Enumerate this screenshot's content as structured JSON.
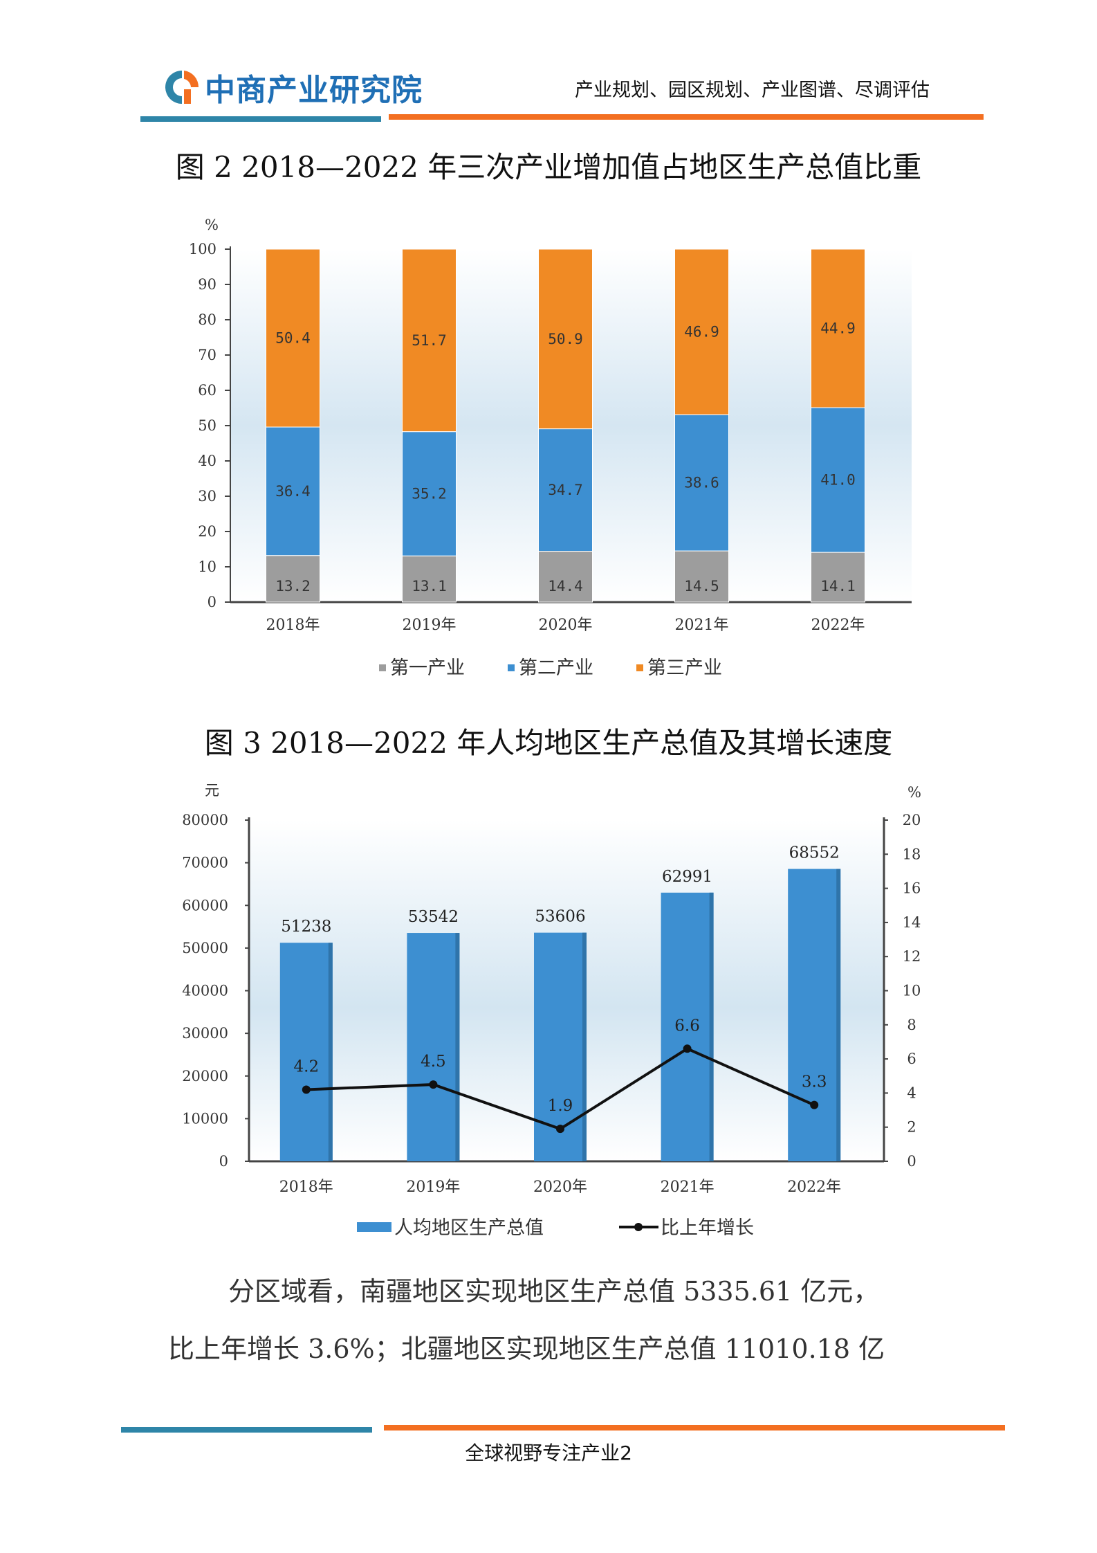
{
  "header": {
    "brand": "中商产业研究院",
    "tagline": "产业规划、园区规划、产业图谱、尽调评估",
    "colors": {
      "blue": "#2e85a8",
      "orange": "#f36f21",
      "brand": "#1f6fb5"
    },
    "logo_icon": "brand-logo-icon"
  },
  "figure2": {
    "title": "图 2 2018—2022 年三次产业增加值占地区生产总值比重",
    "chart_data": {
      "type": "bar",
      "stacked": true,
      "categories": [
        "2018年",
        "2019年",
        "2020年",
        "2021年",
        "2022年"
      ],
      "series": [
        {
          "name": "第一产业",
          "values": [
            13.2,
            13.1,
            14.4,
            14.5,
            14.1
          ],
          "color": "#9d9d9d"
        },
        {
          "name": "第二产业",
          "values": [
            36.4,
            35.2,
            34.7,
            38.6,
            41.0
          ],
          "color": "#3d8fd1"
        },
        {
          "name": "第三产业",
          "values": [
            50.4,
            51.7,
            50.9,
            46.9,
            44.9
          ],
          "color": "#f08a24"
        }
      ],
      "value_labels": [
        [
          "13.2",
          "13.1",
          "14.4",
          "14.5",
          "14.1"
        ],
        [
          "36.4",
          "35.2",
          "34.7",
          "38.6",
          "41.0"
        ],
        [
          "50.4",
          "51.7",
          "50.9",
          "46.9",
          "44.9"
        ]
      ],
      "ylabel": "%",
      "ylim": [
        0,
        100
      ],
      "yticks": [
        0,
        10,
        20,
        30,
        40,
        50,
        60,
        70,
        80,
        90,
        100
      ],
      "legend_position": "bottom"
    }
  },
  "figure3": {
    "title": "图 3 2018—2022 年人均地区生产总值及其增长速度",
    "chart_data": {
      "type": "bar",
      "categories": [
        "2018年",
        "2019年",
        "2020年",
        "2021年",
        "2022年"
      ],
      "series": [
        {
          "name": "人均地区生产总值",
          "type": "bar",
          "axis": "left",
          "values": [
            51238,
            53542,
            53606,
            62991,
            68552
          ],
          "color": "#3d8fd1"
        },
        {
          "name": "比上年增长",
          "type": "line",
          "axis": "right",
          "values": [
            4.2,
            4.5,
            1.9,
            6.6,
            3.3
          ],
          "color": "#111111"
        }
      ],
      "ylabel_left": "元",
      "ylabel_right": "%",
      "ylim_left": [
        0,
        80000
      ],
      "ylim_right": [
        0,
        20
      ],
      "yticks_left": [
        0,
        10000,
        20000,
        30000,
        40000,
        50000,
        60000,
        70000,
        80000
      ],
      "yticks_right": [
        0,
        2,
        4,
        6,
        8,
        10,
        12,
        14,
        16,
        18,
        20
      ],
      "legend_position": "bottom"
    }
  },
  "body_text": {
    "line1": "分区域看，南疆地区实现地区生产总值 5335.61 亿元，",
    "line2": "比上年增长 3.6%；北疆地区实现地区生产总值 11010.18 亿"
  },
  "footer": {
    "text": "全球视野专注产业2"
  }
}
